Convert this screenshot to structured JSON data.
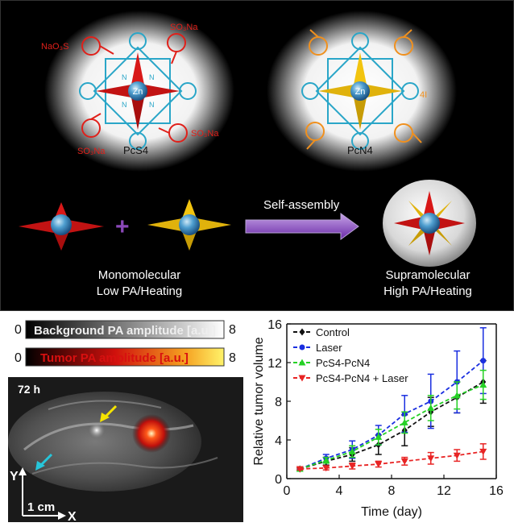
{
  "top": {
    "molecule_left_name": "PcS4",
    "molecule_right_name": "PcN4",
    "left_substituent": "NaO₃S",
    "right_substituent": "SO₃Na",
    "metal": "Zn",
    "nitrogen": "N",
    "right_charge_label": "4I",
    "assembly_label": "Self-assembly",
    "plus": "+",
    "mono_line1": "Monomolecular",
    "mono_line2": "Low PA/Heating",
    "supra_line1": "Supramolecular",
    "supra_line2": "High PA/Heating"
  },
  "imaging": {
    "bg_min": "0",
    "bg_max": "8",
    "bg_label": "Background PA amplitude [a.u.]",
    "tumor_min": "0",
    "tumor_max": "8",
    "tumor_label": "Tumor PA amplitude [a.u.]",
    "time_label": "72 h",
    "axis_y": "Y",
    "axis_x": "X",
    "scale": "1 cm",
    "colors": {
      "bg_bar_start": "#000000",
      "bg_bar_end": "#ffffff",
      "tumor_bar_start": "#000000",
      "tumor_bar_mid": "#d0100c",
      "tumor_bar_end": "#fff36a",
      "arrow_yellow": "#f5e400",
      "arrow_cyan": "#26c6da"
    }
  },
  "chart_data": {
    "type": "line",
    "xlabel": "Time (day)",
    "ylabel": "Relative tumor volume",
    "xlim": [
      0,
      16
    ],
    "ylim": [
      0,
      16
    ],
    "xticks": [
      0,
      4,
      8,
      12,
      16
    ],
    "yticks": [
      0,
      4,
      8,
      12,
      16
    ],
    "legend_position": "top-left",
    "grid": false,
    "x": [
      1,
      3,
      5,
      7,
      9,
      11,
      13,
      15
    ],
    "series": [
      {
        "name": "Control",
        "color": "#111111",
        "marker": "diamond",
        "values": [
          1.0,
          1.8,
          2.5,
          3.5,
          5.0,
          6.9,
          8.4,
          10.0
        ],
        "errors": [
          0.1,
          0.4,
          0.7,
          1.0,
          1.6,
          1.5,
          1.6,
          2.2
        ]
      },
      {
        "name": "Laser",
        "color": "#1a2fe0",
        "marker": "circle",
        "values": [
          1.0,
          2.1,
          3.0,
          4.5,
          6.7,
          8.0,
          10.0,
          12.2
        ],
        "errors": [
          0.1,
          0.4,
          0.9,
          1.0,
          1.9,
          2.8,
          3.2,
          3.4
        ]
      },
      {
        "name": "PcS4-PcN4",
        "color": "#25d125",
        "marker": "triangle",
        "values": [
          1.0,
          1.9,
          2.8,
          4.3,
          5.8,
          7.3,
          8.6,
          9.7
        ],
        "errors": [
          0.1,
          0.3,
          0.6,
          0.8,
          1.1,
          1.3,
          1.4,
          1.5
        ]
      },
      {
        "name": "PcS4-PcN4 + Laser",
        "color": "#e82424",
        "marker": "triangle-down",
        "values": [
          1.0,
          1.1,
          1.3,
          1.5,
          1.8,
          2.1,
          2.4,
          2.8
        ],
        "errors": [
          0.1,
          0.2,
          0.3,
          0.3,
          0.4,
          0.6,
          0.6,
          0.8
        ]
      }
    ]
  }
}
